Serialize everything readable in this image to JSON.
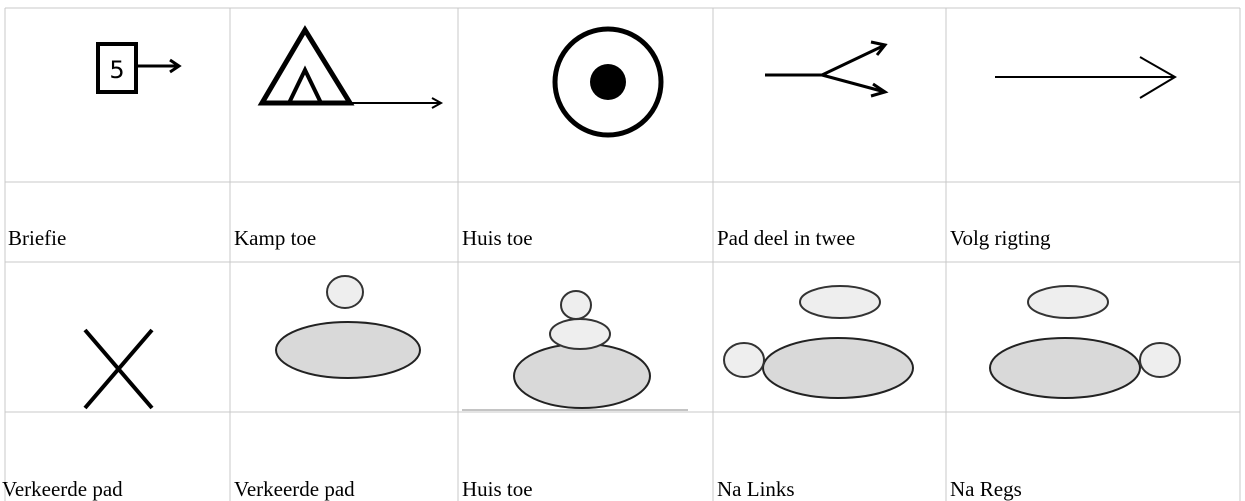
{
  "table": {
    "rows": [
      [
        "Briefie",
        "Kamp toe",
        "Huis toe",
        "Pad deel in twee",
        "Volg rigting"
      ],
      [
        "Verkeerde pad",
        "Verkeerde pad",
        "Huis toe",
        "Na Links",
        "Na Regs"
      ]
    ]
  }
}
